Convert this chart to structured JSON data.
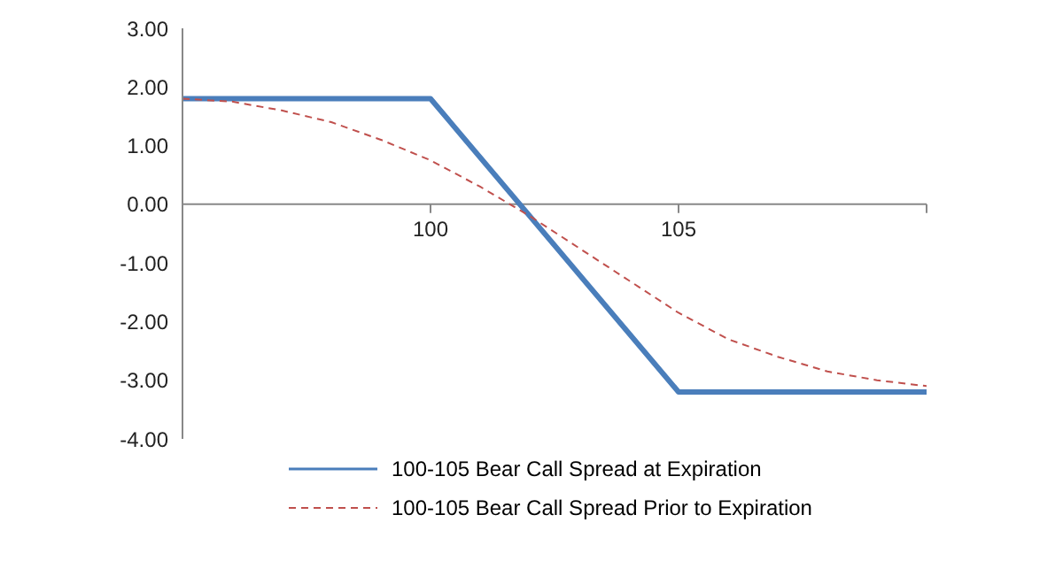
{
  "chart_data": {
    "type": "line",
    "legend": "bottom",
    "xlim": [
      95,
      110
    ],
    "xticks": [
      {
        "value": 95,
        "label": null
      },
      100,
      105,
      {
        "value": 110,
        "label": null
      }
    ],
    "ylim": [
      -4,
      3
    ],
    "yticks": [
      {
        "value": -4,
        "label": "-4.00"
      },
      {
        "value": -3,
        "label": "-3.00"
      },
      {
        "value": -2,
        "label": "-2.00"
      },
      {
        "value": -1,
        "label": "-1.00"
      },
      {
        "value": 0,
        "label": "0.00"
      },
      {
        "value": 1,
        "label": "1.00"
      },
      {
        "value": 2,
        "label": "2.00"
      },
      {
        "value": 3,
        "label": "3.00"
      }
    ],
    "series": [
      {
        "name": "100-105 Bear Call Spread at Expiration",
        "color": "#4a7ebb",
        "line_style": "solid",
        "x": [
          95,
          100,
          105,
          110
        ],
        "values": [
          1.8,
          1.8,
          -3.2,
          -3.2
        ]
      },
      {
        "name": "100-105 Bear Call Spread Prior to Expiration",
        "color": "#c0504d",
        "line_style": "dashed",
        "x": [
          95,
          96,
          97,
          98,
          99,
          100,
          101,
          102,
          103,
          104,
          105,
          106,
          107,
          108,
          109,
          110
        ],
        "values": [
          1.8,
          1.75,
          1.6,
          1.4,
          1.1,
          0.75,
          0.3,
          -0.2,
          -0.75,
          -1.3,
          -1.85,
          -2.3,
          -2.6,
          -2.85,
          -3.0,
          -3.1
        ]
      }
    ]
  }
}
